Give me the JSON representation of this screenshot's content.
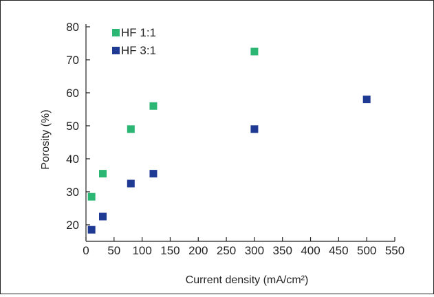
{
  "chart_data": {
    "type": "scatter",
    "title": "",
    "xlabel": "Current density (mA/cm²)",
    "ylabel": "Porosity (%)",
    "xlim": [
      0,
      550
    ],
    "ylim": [
      15,
      80
    ],
    "xticks": [
      0,
      50,
      100,
      150,
      200,
      250,
      300,
      350,
      400,
      450,
      500,
      550
    ],
    "yticks": [
      20,
      30,
      40,
      50,
      60,
      70,
      80
    ],
    "grid": false,
    "legend_position": "top-left",
    "series": [
      {
        "name": "HF 1:1",
        "color": "#2bb673",
        "x": [
          10,
          30,
          80,
          120,
          300
        ],
        "y": [
          28.5,
          35.5,
          49,
          56,
          72.5
        ]
      },
      {
        "name": "HF 3:1",
        "color": "#1f3a93",
        "x": [
          10,
          30,
          80,
          120,
          300,
          500
        ],
        "y": [
          18.5,
          22.5,
          32.5,
          35.5,
          49,
          58
        ]
      }
    ]
  }
}
